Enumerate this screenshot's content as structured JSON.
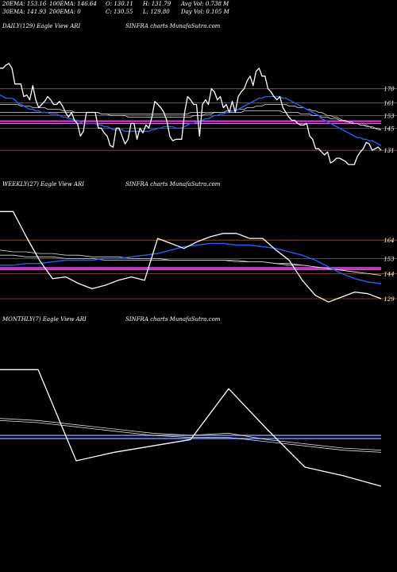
{
  "header": {
    "row1": {
      "ema20": "20EMA: 153.16",
      "ema100": "100EMA: 146.64",
      "open": "O: 130.11",
      "high": "H: 131.79",
      "avg_vol": "Avg Vol: 0.738 M"
    },
    "row2": {
      "ema30": "30EMA: 141.93",
      "ema200": "200EMA: 0",
      "close": "C: 130.55",
      "low": "L: 129.80",
      "day_vol": "Day Vol: 0.105 M"
    }
  },
  "colors": {
    "background": "#000000",
    "price_line": "#ffffff",
    "ema_fast": "#1f5fff",
    "ema_slow": "#d8d8d8",
    "level_line": "#a0522d",
    "magenta_band": "#ff44ff",
    "blue_band": "#6f8fff"
  },
  "panels": {
    "daily": {
      "label_left": "DAILY(129) Eagle   View  ARI",
      "label_center": "SINFRA charts MunafaSutra.com"
    },
    "weekly": {
      "label_left": "WEEKLY(27) Eagle   View  ARI",
      "label_center": "SINFRA charts MunafaSutra.com"
    },
    "monthly": {
      "label_left": "MONTHLY(7) Eagle   View  ARI",
      "label_center": "SINFRA charts MunafaSutra.com"
    }
  },
  "chart_data": [
    {
      "type": "line",
      "name": "daily",
      "ylim": [
        118,
        196
      ],
      "yticks": [
        170,
        161,
        153,
        145,
        131
      ],
      "levels": [
        170,
        161,
        153,
        145,
        131
      ],
      "magenta_levels": [
        149.5,
        148
      ],
      "series": [
        {
          "role": "price",
          "values": [
            183,
            183,
            185,
            186,
            183,
            173,
            173,
            173,
            165,
            166,
            163,
            172,
            163,
            158,
            160,
            162,
            165,
            163,
            160,
            160,
            162,
            159,
            155,
            152,
            155,
            150,
            148,
            140,
            143,
            155,
            155,
            155,
            155,
            145,
            145,
            142,
            140,
            134,
            133,
            145,
            145,
            140,
            135,
            138,
            148,
            148,
            138,
            145,
            142,
            147,
            145,
            152,
            162,
            160,
            158,
            155,
            150,
            140,
            137,
            138,
            138,
            138,
            155,
            165,
            163,
            160,
            160,
            140,
            160,
            163,
            160,
            170,
            168,
            163,
            165,
            158,
            160,
            155,
            162,
            155,
            165,
            168,
            170,
            175,
            178,
            172,
            181,
            183,
            178,
            178,
            170,
            168,
            165,
            163,
            165,
            158,
            155,
            152,
            150,
            150,
            148,
            147,
            147,
            148,
            140,
            138,
            132,
            132,
            130,
            128,
            130,
            123,
            124,
            126,
            126,
            125,
            124,
            122,
            122,
            122,
            127,
            130,
            132,
            136,
            135,
            131,
            132,
            133,
            131
          ]
        },
        {
          "role": "ema_fast",
          "values": [
            166,
            165,
            164,
            164,
            164,
            163,
            161,
            160,
            159,
            158,
            157,
            157,
            156,
            156,
            155,
            155,
            155,
            154,
            154,
            154,
            153,
            152,
            152,
            151,
            151,
            150,
            150,
            149,
            148,
            148,
            148,
            148,
            148,
            147,
            147,
            146,
            146,
            145,
            144,
            144,
            144,
            144,
            143,
            143,
            143,
            143,
            143,
            143,
            143,
            143,
            143,
            144,
            144,
            145,
            145,
            146,
            146,
            146,
            146,
            145,
            145,
            145,
            146,
            147,
            148,
            148,
            149,
            149,
            150,
            151,
            151,
            152,
            153,
            153,
            154,
            154,
            155,
            155,
            156,
            156,
            157,
            158,
            159,
            160,
            161,
            162,
            163,
            164,
            164,
            165,
            165,
            165,
            165,
            165,
            165,
            164,
            164,
            163,
            162,
            161,
            160,
            159,
            158,
            157,
            156,
            155,
            154,
            153,
            151,
            150,
            149,
            148,
            147,
            146,
            145,
            144,
            143,
            142,
            141,
            140,
            139,
            139,
            138,
            138,
            137,
            137,
            136,
            135,
            134
          ]
        },
        {
          "role": "ema_slow",
          "values": [
            155,
            155,
            155,
            155,
            155,
            155,
            155,
            155,
            155,
            155,
            155,
            155,
            155,
            155,
            155,
            155,
            155,
            155,
            155,
            155,
            155,
            155,
            155,
            155,
            155,
            155,
            155,
            155,
            155,
            155,
            155,
            155,
            155,
            155,
            154,
            154,
            154,
            154,
            154,
            154,
            154,
            154,
            154,
            154,
            154,
            154,
            154,
            154,
            154,
            154,
            154,
            154,
            154,
            154,
            154,
            154,
            154,
            154,
            154,
            154,
            154,
            154,
            154,
            154,
            155,
            155,
            155,
            155,
            155,
            155,
            155,
            155,
            155,
            155,
            155,
            155,
            155,
            155,
            155,
            155,
            155,
            155,
            156,
            156,
            156,
            156,
            156,
            156,
            156,
            156,
            156,
            156,
            156,
            156,
            156,
            155,
            155,
            155,
            155,
            155,
            155,
            154,
            154,
            154,
            154,
            153,
            153,
            153,
            152,
            152,
            152,
            151,
            151,
            151,
            150,
            150,
            149,
            149,
            148,
            148,
            148,
            147,
            147,
            147,
            146,
            146,
            145,
            145,
            144
          ]
        },
        {
          "role": "ema_mid",
          "values": [
            160,
            160,
            160,
            160,
            160,
            160,
            160,
            159,
            159,
            159,
            159,
            158,
            158,
            158,
            158,
            158,
            157,
            157,
            157,
            157,
            157,
            156,
            156,
            156,
            156,
            155,
            155,
            155,
            155,
            155,
            155,
            155,
            155,
            155,
            154,
            154,
            154,
            153,
            153,
            153,
            153,
            153,
            153,
            152,
            152,
            152,
            152,
            152,
            152,
            152,
            152,
            152,
            152,
            152,
            152,
            152,
            152,
            152,
            152,
            152,
            152,
            152,
            152,
            152,
            152,
            153,
            153,
            153,
            153,
            154,
            154,
            154,
            155,
            155,
            155,
            155,
            156,
            156,
            156,
            156,
            157,
            157,
            157,
            158,
            158,
            158,
            159,
            159,
            159,
            160,
            160,
            160,
            160,
            160,
            160,
            160,
            160,
            159,
            159,
            159,
            158,
            158,
            158,
            157,
            157,
            156,
            156,
            155,
            155,
            154,
            153,
            153,
            152,
            152,
            151,
            150,
            150,
            149,
            149,
            148,
            148,
            147,
            147,
            146,
            146,
            145,
            145,
            144,
            144
          ]
        }
      ]
    },
    {
      "type": "line",
      "name": "weekly",
      "ylim": [
        120,
        184
      ],
      "yticks": [
        164,
        153,
        144,
        129
      ],
      "levels": [
        164,
        153,
        144,
        129
      ],
      "magenta_levels": [
        147.5,
        146.5
      ],
      "series": [
        {
          "role": "price",
          "values": [
            181,
            181,
            166,
            152,
            141,
            142,
            138,
            135,
            137,
            140,
            142,
            140,
            165,
            162,
            159,
            163,
            166,
            168,
            168,
            165,
            165,
            158,
            152,
            140,
            131,
            127,
            130,
            133,
            132,
            129
          ]
        },
        {
          "role": "ema_fast",
          "values": [
            149,
            149,
            150,
            150,
            151,
            152,
            152,
            152,
            153,
            153,
            154,
            155,
            156,
            158,
            160,
            161,
            162,
            162,
            161,
            161,
            160,
            159,
            157,
            155,
            152,
            148,
            144,
            141,
            139,
            138
          ]
        },
        {
          "role": "ema_slow",
          "values": [
            158,
            157,
            157,
            156,
            156,
            155,
            155,
            154,
            154,
            154,
            153,
            153,
            153,
            152,
            152,
            152,
            152,
            152,
            151,
            151,
            151,
            150,
            149,
            149,
            148,
            147,
            146,
            145,
            144,
            143
          ]
        },
        {
          "role": "ema_mid",
          "values": [
            155,
            155,
            154,
            154,
            154,
            153,
            153,
            153,
            152,
            152,
            152,
            152,
            152,
            152,
            152,
            152,
            152,
            152,
            152,
            151,
            151,
            150,
            150,
            149,
            148,
            147,
            146,
            145,
            144,
            143
          ]
        }
      ]
    },
    {
      "type": "line",
      "name": "monthly",
      "ylim": [
        110,
        200
      ],
      "yticks": [],
      "levels": [],
      "blue_levels": [
        152,
        150.5
      ],
      "series": [
        {
          "role": "price",
          "values": [
            183,
            183,
            140,
            144,
            147,
            150,
            174,
            155,
            137,
            133,
            128
          ]
        },
        {
          "role": "ema_slow",
          "values": [
            159,
            158,
            156,
            154,
            152,
            151,
            151,
            149,
            147,
            145,
            144
          ]
        },
        {
          "role": "ema_mid",
          "values": [
            160,
            159,
            157,
            155,
            153,
            152,
            153,
            150,
            148,
            146,
            145
          ]
        }
      ]
    }
  ]
}
